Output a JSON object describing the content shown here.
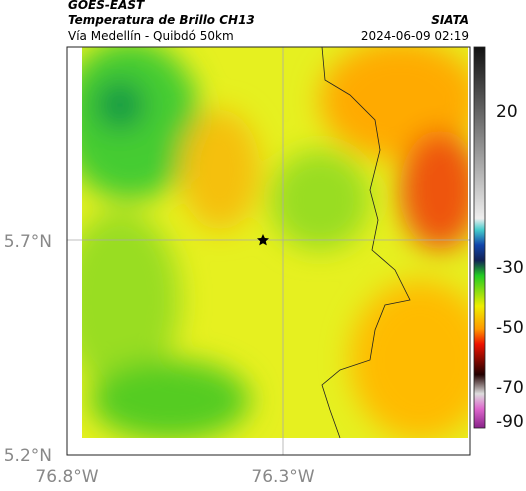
{
  "header": {
    "title": "GOES-EAST",
    "subtitle": "Temperatura de Brillo CH13",
    "source": "SIATA",
    "location": "Vía Medellín - Quibdó 50km",
    "datetime": "2024-06-09 02:19"
  },
  "axes": {
    "lat_labels": [
      "5.7°N",
      "5.2°N"
    ],
    "lon_labels": [
      "76.8°W",
      "76.3°W"
    ]
  },
  "colorbar": {
    "ticks": [
      20,
      -30,
      -50,
      -70,
      -90
    ]
  }
}
